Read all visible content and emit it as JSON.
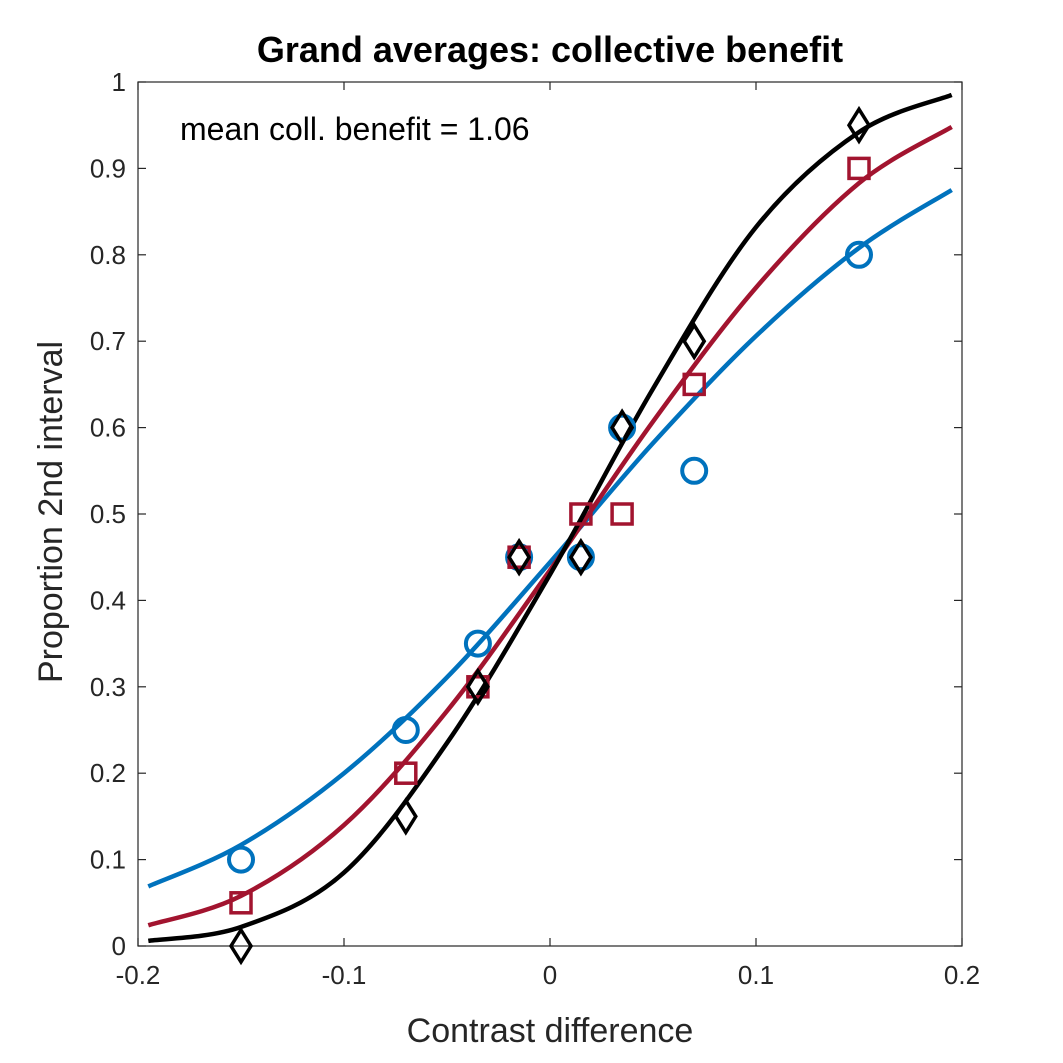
{
  "chart_data": {
    "type": "scatter",
    "title": "Grand averages: collective benefit",
    "xlabel": "Contrast difference",
    "ylabel": "Proportion 2nd interval",
    "annotation": "mean coll. benefit = 1.06",
    "xlim": [
      -0.2,
      0.2
    ],
    "ylim": [
      0,
      1
    ],
    "xticks": [
      -0.2,
      -0.1,
      0,
      0.1,
      0.2
    ],
    "xtick_labels": [
      "-0.2",
      "-0.1",
      "0",
      "0.1",
      "0.2"
    ],
    "yticks": [
      0,
      0.1,
      0.2,
      0.3,
      0.4,
      0.5,
      0.6,
      0.7,
      0.8,
      0.9,
      1
    ],
    "ytick_labels": [
      "0",
      "0.1",
      "0.2",
      "0.3",
      "0.4",
      "0.5",
      "0.6",
      "0.7",
      "0.8",
      "0.9",
      "1"
    ],
    "grid": false,
    "box": true,
    "series": [
      {
        "marker": "circle",
        "color": "#0072BD",
        "points": [
          {
            "x": -0.15,
            "y": 0.1
          },
          {
            "x": -0.07,
            "y": 0.25
          },
          {
            "x": -0.035,
            "y": 0.35
          },
          {
            "x": -0.015,
            "y": 0.45
          },
          {
            "x": 0.015,
            "y": 0.45
          },
          {
            "x": 0.035,
            "y": 0.6
          },
          {
            "x": 0.07,
            "y": 0.55
          },
          {
            "x": 0.15,
            "y": 0.8
          }
        ],
        "fit": {
          "x": [
            -0.195,
            -0.15,
            -0.1,
            -0.05,
            0,
            0.05,
            0.1,
            0.15,
            0.195
          ],
          "y": [
            0.069,
            0.117,
            0.2,
            0.311,
            0.444,
            0.582,
            0.706,
            0.808,
            0.875
          ]
        }
      },
      {
        "marker": "square",
        "color": "#A2142F",
        "points": [
          {
            "x": -0.15,
            "y": 0.05
          },
          {
            "x": -0.07,
            "y": 0.2
          },
          {
            "x": -0.035,
            "y": 0.3
          },
          {
            "x": -0.015,
            "y": 0.45
          },
          {
            "x": 0.015,
            "y": 0.5
          },
          {
            "x": 0.035,
            "y": 0.5
          },
          {
            "x": 0.07,
            "y": 0.65
          },
          {
            "x": 0.15,
            "y": 0.9
          }
        ],
        "fit": {
          "x": [
            -0.195,
            -0.15,
            -0.1,
            -0.05,
            0,
            0.05,
            0.1,
            0.15,
            0.195
          ],
          "y": [
            0.024,
            0.058,
            0.14,
            0.272,
            0.435,
            0.607,
            0.762,
            0.883,
            0.948
          ]
        }
      },
      {
        "marker": "diamond",
        "color": "#000000",
        "points": [
          {
            "x": -0.15,
            "y": 0.0
          },
          {
            "x": -0.07,
            "y": 0.15
          },
          {
            "x": -0.035,
            "y": 0.3
          },
          {
            "x": -0.015,
            "y": 0.45
          },
          {
            "x": 0.015,
            "y": 0.45
          },
          {
            "x": 0.035,
            "y": 0.6
          },
          {
            "x": 0.07,
            "y": 0.7
          },
          {
            "x": 0.15,
            "y": 0.95
          }
        ],
        "fit": {
          "x": [
            -0.195,
            -0.15,
            -0.1,
            -0.05,
            0,
            0.05,
            0.1,
            0.15,
            0.195
          ],
          "y": [
            0.006,
            0.022,
            0.085,
            0.235,
            0.43,
            0.645,
            0.832,
            0.942,
            0.985
          ]
        }
      }
    ]
  }
}
